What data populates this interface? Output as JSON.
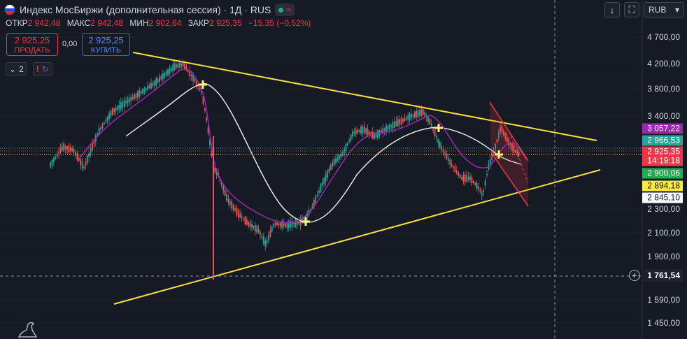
{
  "header": {
    "title": "Индекс МосБиржи (дополнительная сессия) · 1Д · RUS",
    "flag_colors": [
      "#ffffff",
      "#1c4fd8",
      "#e0282e"
    ],
    "status_wave": "≈"
  },
  "ohlc": {
    "open_label": "ОТКР",
    "open": "2 942,48",
    "high_label": "МАКС",
    "high": "2 942,48",
    "low_label": "МИН",
    "low": "2 902,64",
    "close_label": "ЗАКР",
    "close": "2 925,35",
    "change": "−15,35 (−0,52%)"
  },
  "trade": {
    "sell_price": "2 925,25",
    "sell_label": "ПРОДАТЬ",
    "spread": "0,00",
    "buy_price": "2 925,25",
    "buy_label": "КУПИТЬ"
  },
  "indicators": {
    "count": "2",
    "warning": "!"
  },
  "toolbar": {
    "currency": "RUB"
  },
  "price_axis": {
    "ticks": [
      "4 700,00",
      "4 200,00",
      "3 800,00",
      "3 400,00",
      "2 300,00",
      "2 100,00",
      "1 900,00",
      "1 590,00",
      "1 450,00"
    ]
  },
  "tags": [
    {
      "value": "3 057,22",
      "bg": "#9c27b0",
      "fg": "#ffffff"
    },
    {
      "value": "2 966,53",
      "bg": "#26a69a",
      "fg": "#ffffff"
    },
    {
      "value": "2 925,35",
      "bg": "#f23645",
      "fg": "#ffffff"
    },
    {
      "value": "14:19:18",
      "bg": "#f23645",
      "fg": "#ffffff"
    },
    {
      "value": "2 900,06",
      "bg": "#22ab4f",
      "fg": "#ffffff"
    },
    {
      "value": "2 894,18",
      "bg": "#ffeb3b",
      "fg": "#131722"
    },
    {
      "value": "2 845,10",
      "bg": "#ffffff",
      "fg": "#131722"
    }
  ],
  "crosshair": {
    "price": "1 761,54"
  },
  "colors": {
    "background": "#161a25",
    "up": "#26a69a",
    "down": "#ef5350",
    "trendline": "#f5e042",
    "ma_white": "#e6e6e6",
    "ma_purple": "#9c27b0",
    "channel": "#f23645"
  }
}
